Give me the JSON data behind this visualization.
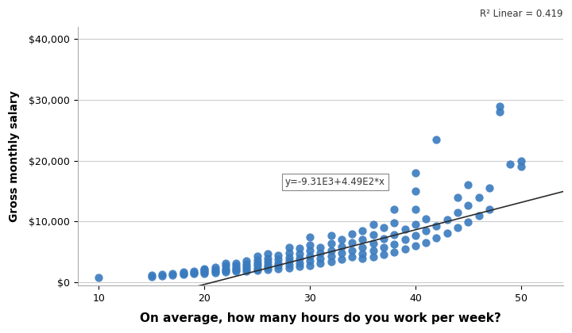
{
  "title": "",
  "xlabel": "On average, how many hours do you work per week?",
  "ylabel": "Gross monthly salary",
  "r2_text": "R² Linear = 0.419",
  "equation_text": "y=-9.31E3+4.49E2*x",
  "intercept": -9310,
  "slope": 449,
  "xlim": [
    8,
    54
  ],
  "ylim": [
    -500,
    42000
  ],
  "xticks": [
    10,
    20,
    30,
    40,
    50
  ],
  "yticks": [
    0,
    10000,
    20000,
    30000,
    40000
  ],
  "ytick_labels": [
    "$0",
    "$10,000",
    "$20,000",
    "$30,000",
    "$40,000"
  ],
  "dot_color": "#3a7bbf",
  "dot_size": 55,
  "line_color": "#2d2d2d",
  "background_color": "#ffffff",
  "scatter_x": [
    10,
    15,
    15,
    16,
    16,
    17,
    17,
    18,
    18,
    18,
    19,
    19,
    19,
    20,
    20,
    20,
    20,
    20,
    21,
    21,
    21,
    21,
    22,
    22,
    22,
    22,
    22,
    23,
    23,
    23,
    23,
    23,
    24,
    24,
    24,
    24,
    24,
    25,
    25,
    25,
    25,
    25,
    25,
    26,
    26,
    26,
    26,
    26,
    26,
    27,
    27,
    27,
    27,
    27,
    28,
    28,
    28,
    28,
    28,
    28,
    29,
    29,
    29,
    29,
    29,
    30,
    30,
    30,
    30,
    30,
    30,
    31,
    31,
    31,
    31,
    32,
    32,
    32,
    32,
    32,
    33,
    33,
    33,
    33,
    34,
    34,
    34,
    34,
    35,
    35,
    35,
    35,
    35,
    36,
    36,
    36,
    36,
    36,
    37,
    37,
    37,
    37,
    38,
    38,
    38,
    38,
    38,
    39,
    39,
    39,
    40,
    40,
    40,
    40,
    40,
    40,
    41,
    41,
    41,
    42,
    42,
    42,
    43,
    43,
    44,
    44,
    44,
    45,
    45,
    45,
    46,
    46,
    47,
    47,
    48,
    48,
    49,
    50,
    50
  ],
  "scatter_y": [
    800,
    1000,
    1200,
    1100,
    1300,
    1200,
    1400,
    1300,
    1500,
    1700,
    1400,
    1600,
    1800,
    1500,
    1700,
    1900,
    2100,
    2300,
    1600,
    1800,
    2100,
    2500,
    1700,
    2000,
    2300,
    2700,
    3100,
    1800,
    2100,
    2400,
    2800,
    3200,
    1900,
    2200,
    2600,
    3000,
    3500,
    2000,
    2300,
    2700,
    3200,
    3700,
    4300,
    2100,
    2500,
    2900,
    3400,
    4000,
    4700,
    2200,
    2700,
    3200,
    3800,
    4500,
    2400,
    2900,
    3500,
    4100,
    4900,
    5800,
    2600,
    3200,
    3900,
    4700,
    5600,
    2800,
    3500,
    4300,
    5200,
    6200,
    7400,
    3100,
    3900,
    4800,
    5800,
    3400,
    4300,
    5300,
    6400,
    7700,
    3800,
    4800,
    5900,
    7100,
    4200,
    5300,
    6500,
    8000,
    3900,
    4700,
    5700,
    7000,
    8500,
    4200,
    5200,
    6400,
    7800,
    9500,
    4600,
    5800,
    7200,
    9000,
    5000,
    6300,
    7900,
    9800,
    12000,
    5500,
    7000,
    8800,
    6000,
    7700,
    9600,
    12000,
    15000,
    18000,
    6600,
    8500,
    10500,
    7300,
    9300,
    23500,
    8100,
    10300,
    9000,
    11500,
    14000,
    9900,
    12700,
    16000,
    11000,
    14000,
    12000,
    15500,
    28000,
    29000,
    19500,
    20000,
    19000
  ],
  "figsize": [
    7.2,
    4.2
  ],
  "dpi": 100
}
